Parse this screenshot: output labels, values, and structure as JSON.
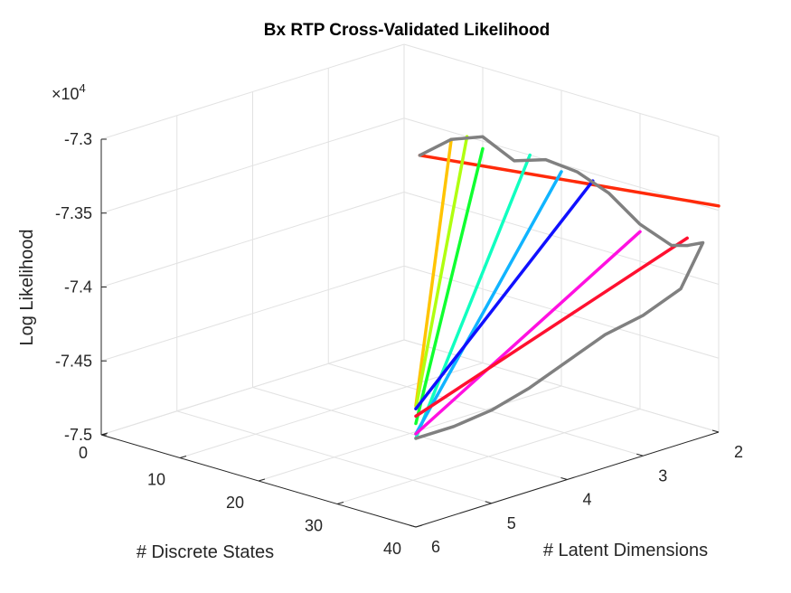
{
  "chart_data": {
    "type": "line",
    "title": "Bx RTP Cross-Validated Likelihood",
    "xlabel": "# Discrete States",
    "ylabel": "# Latent Dimensions",
    "zlabel": "Log Likelihood",
    "exponent_label": "×10",
    "exponent_power": "4",
    "xlim": [
      0,
      40
    ],
    "ylim": [
      2,
      6
    ],
    "zlim": [
      -7.5,
      -7.3
    ],
    "x_ticks": [
      0,
      10,
      20,
      30,
      40
    ],
    "x_tick_labels": [
      "0",
      "10",
      "20",
      "30",
      "40"
    ],
    "y_ticks": [
      2,
      3,
      4,
      5,
      6
    ],
    "y_tick_labels": [
      "2",
      "3",
      "4",
      "5",
      "6"
    ],
    "z_ticks": [
      -7.5,
      -7.45,
      -7.4,
      -7.35,
      -7.3
    ],
    "z_tick_labels": [
      "-7.5",
      "-7.45",
      "-7.4",
      "-7.35",
      "-7.3"
    ],
    "grid": true,
    "series": [
      {
        "color": "#ff2a0a",
        "x": [
          2,
          40
        ],
        "y": [
          2,
          2
        ],
        "z": [
          -7.372,
          -7.347
        ]
      },
      {
        "color": "#ffc400",
        "x": [
          6,
          40
        ],
        "y": [
          2,
          6
        ],
        "z": [
          -7.355,
          -7.418
        ]
      },
      {
        "color": "#b0ff10",
        "x": [
          8,
          40
        ],
        "y": [
          2,
          6
        ],
        "z": [
          -7.35,
          -7.42
        ]
      },
      {
        "color": "#10ff30",
        "x": [
          10,
          40
        ],
        "y": [
          2,
          6
        ],
        "z": [
          -7.355,
          -7.43
        ]
      },
      {
        "color": "#10ffc0",
        "x": [
          16,
          40
        ],
        "y": [
          2,
          6
        ],
        "z": [
          -7.35,
          -7.44
        ]
      },
      {
        "color": "#10b4ff",
        "x": [
          20,
          40
        ],
        "y": [
          2,
          6
        ],
        "z": [
          -7.355,
          -7.437
        ]
      },
      {
        "color": "#1010ff",
        "x": [
          24,
          40
        ],
        "y": [
          2,
          6
        ],
        "z": [
          -7.355,
          -7.42
        ]
      },
      {
        "color": "#ff10e0",
        "x": [
          30,
          40
        ],
        "y": [
          2,
          6
        ],
        "z": [
          -7.38,
          -7.437
        ]
      },
      {
        "color": "#ff1030",
        "x": [
          36,
          40
        ],
        "y": [
          2,
          6
        ],
        "z": [
          -7.375,
          -7.425
        ]
      },
      {
        "color": "#808080",
        "x": [
          2,
          6,
          10,
          14,
          18,
          22,
          26,
          30,
          34,
          36,
          38,
          40,
          40,
          40,
          40,
          40,
          40,
          40,
          40,
          40
        ],
        "y": [
          2,
          2,
          2,
          2,
          2,
          2,
          2,
          2,
          2,
          2,
          2,
          2.5,
          3,
          3.5,
          4,
          4.5,
          5,
          5.5,
          6,
          6
        ],
        "z": [
          -7.372,
          -7.355,
          -7.347,
          -7.357,
          -7.35,
          -7.352,
          -7.36,
          -7.375,
          -7.383,
          -7.38,
          -7.375,
          -7.395,
          -7.405,
          -7.41,
          -7.42,
          -7.43,
          -7.437,
          -7.44,
          -7.44,
          -7.44
        ]
      }
    ]
  }
}
